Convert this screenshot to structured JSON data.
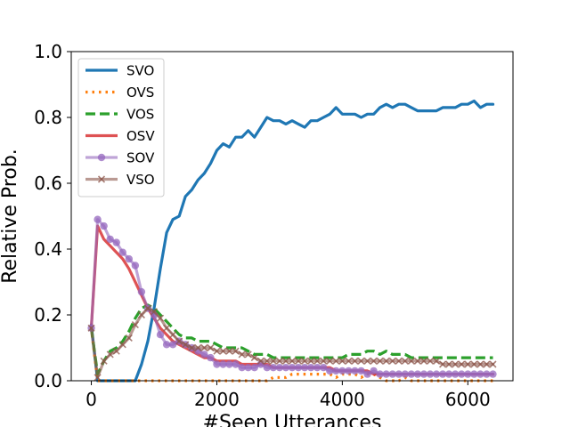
{
  "chart_data": {
    "type": "line",
    "xlabel": "#Seen Utterances",
    "ylabel": "Relative Prob.",
    "xlim": [
      -320,
      6720
    ],
    "ylim": [
      0.0,
      1.0
    ],
    "xticks": [
      0,
      2000,
      4000,
      6000
    ],
    "yticks": [
      0.0,
      0.2,
      0.4,
      0.6,
      0.8,
      1.0
    ],
    "xtick_labels": [
      "0",
      "2000",
      "4000",
      "6000"
    ],
    "ytick_labels": [
      "0.0",
      "0.2",
      "0.4",
      "0.6",
      "0.8",
      "1.0"
    ],
    "grid": false,
    "legend_position": "top-left",
    "x": [
      0,
      100,
      200,
      300,
      400,
      500,
      600,
      700,
      800,
      900,
      1000,
      1100,
      1200,
      1300,
      1400,
      1500,
      1600,
      1700,
      1800,
      1900,
      2000,
      2100,
      2200,
      2300,
      2400,
      2500,
      2600,
      2700,
      2800,
      2900,
      3000,
      3100,
      3200,
      3300,
      3400,
      3500,
      3600,
      3700,
      3800,
      3900,
      4000,
      4100,
      4200,
      4300,
      4400,
      4500,
      4600,
      4700,
      4800,
      4900,
      5000,
      5100,
      5200,
      5300,
      5400,
      5500,
      5600,
      5700,
      5800,
      5900,
      6000,
      6100,
      6200,
      6300,
      6400
    ],
    "series": [
      {
        "name": "SVO",
        "color": "#1f77b4",
        "style": "solid",
        "marker": "none",
        "values": [
          0.17,
          0.0,
          0.0,
          0.0,
          0.0,
          0.0,
          0.0,
          0.0,
          0.05,
          0.12,
          0.22,
          0.34,
          0.45,
          0.49,
          0.5,
          0.56,
          0.58,
          0.61,
          0.63,
          0.66,
          0.7,
          0.72,
          0.71,
          0.74,
          0.74,
          0.76,
          0.74,
          0.77,
          0.8,
          0.79,
          0.79,
          0.78,
          0.79,
          0.78,
          0.77,
          0.79,
          0.79,
          0.8,
          0.81,
          0.83,
          0.81,
          0.81,
          0.81,
          0.8,
          0.81,
          0.81,
          0.83,
          0.84,
          0.83,
          0.84,
          0.84,
          0.83,
          0.82,
          0.82,
          0.82,
          0.82,
          0.83,
          0.83,
          0.83,
          0.84,
          0.84,
          0.85,
          0.83,
          0.84,
          0.84
        ]
      },
      {
        "name": "OVS",
        "color": "#ff7f0e",
        "style": "dotted",
        "marker": "none",
        "values": [
          0.16,
          0.0,
          0.0,
          0.0,
          0.0,
          0.0,
          0.0,
          0.0,
          0.0,
          0.0,
          0.0,
          0.0,
          0.0,
          0.0,
          0.0,
          0.0,
          0.0,
          0.0,
          0.0,
          0.0,
          0.0,
          0.0,
          0.0,
          0.0,
          0.0,
          0.0,
          0.0,
          0.0,
          0.0,
          0.01,
          0.01,
          0.01,
          0.02,
          0.02,
          0.02,
          0.02,
          0.02,
          0.02,
          0.02,
          0.01,
          0.02,
          0.02,
          0.02,
          0.01,
          0.02,
          0.02,
          0.01,
          0.0,
          0.0,
          0.0,
          0.01,
          0.0,
          0.0,
          0.0,
          0.0,
          0.0,
          0.0,
          0.0,
          0.0,
          0.0,
          0.0,
          0.0,
          0.0,
          0.0,
          0.0
        ]
      },
      {
        "name": "VOS",
        "color": "#2ca02c",
        "style": "dashed",
        "marker": "none",
        "values": [
          0.16,
          0.02,
          0.06,
          0.09,
          0.1,
          0.12,
          0.15,
          0.19,
          0.22,
          0.23,
          0.22,
          0.2,
          0.18,
          0.16,
          0.14,
          0.13,
          0.13,
          0.12,
          0.12,
          0.12,
          0.11,
          0.1,
          0.1,
          0.1,
          0.1,
          0.09,
          0.08,
          0.08,
          0.08,
          0.07,
          0.07,
          0.07,
          0.07,
          0.07,
          0.07,
          0.07,
          0.07,
          0.07,
          0.07,
          0.07,
          0.07,
          0.08,
          0.08,
          0.08,
          0.09,
          0.09,
          0.08,
          0.09,
          0.08,
          0.08,
          0.08,
          0.07,
          0.07,
          0.07,
          0.07,
          0.07,
          0.07,
          0.07,
          0.07,
          0.07,
          0.07,
          0.07,
          0.07,
          0.07,
          0.07
        ]
      },
      {
        "name": "OSV",
        "color": "#d62728",
        "style": "solid",
        "marker": "none",
        "values": [
          0.16,
          0.47,
          0.43,
          0.41,
          0.39,
          0.37,
          0.34,
          0.3,
          0.26,
          0.22,
          0.19,
          0.16,
          0.14,
          0.12,
          0.11,
          0.1,
          0.09,
          0.08,
          0.07,
          0.07,
          0.06,
          0.06,
          0.06,
          0.06,
          0.05,
          0.05,
          0.05,
          0.05,
          0.05,
          0.04,
          0.04,
          0.04,
          0.04,
          0.04,
          0.04,
          0.04,
          0.04,
          0.04,
          0.04,
          0.03,
          0.03,
          0.03,
          0.03,
          0.03,
          0.03,
          0.02,
          0.02,
          0.02,
          0.02,
          0.02,
          0.02,
          0.02,
          0.02,
          0.02,
          0.02,
          0.02,
          0.02,
          0.02,
          0.02,
          0.02,
          0.02,
          0.02,
          0.02,
          0.02,
          0.02
        ]
      },
      {
        "name": "SOV",
        "color": "#9467bd",
        "style": "solid",
        "marker": "circle",
        "values": [
          0.16,
          0.49,
          0.47,
          0.43,
          0.42,
          0.39,
          0.37,
          0.35,
          0.27,
          0.22,
          0.2,
          0.14,
          0.11,
          0.11,
          0.12,
          0.11,
          0.1,
          0.09,
          0.08,
          0.07,
          0.05,
          0.05,
          0.05,
          0.05,
          0.04,
          0.04,
          0.04,
          0.05,
          0.04,
          0.04,
          0.04,
          0.04,
          0.04,
          0.04,
          0.04,
          0.04,
          0.04,
          0.04,
          0.03,
          0.03,
          0.03,
          0.03,
          0.03,
          0.03,
          0.02,
          0.03,
          0.02,
          0.02,
          0.02,
          0.02,
          0.02,
          0.02,
          0.02,
          0.02,
          0.02,
          0.02,
          0.02,
          0.02,
          0.02,
          0.02,
          0.02,
          0.02,
          0.02,
          0.02,
          0.02
        ]
      },
      {
        "name": "VSO",
        "color": "#8c564b",
        "style": "solid",
        "marker": "x",
        "values": [
          0.16,
          0.01,
          0.06,
          0.08,
          0.09,
          0.11,
          0.13,
          0.17,
          0.2,
          0.22,
          0.21,
          0.19,
          0.16,
          0.14,
          0.12,
          0.11,
          0.1,
          0.1,
          0.1,
          0.1,
          0.09,
          0.09,
          0.09,
          0.09,
          0.08,
          0.08,
          0.07,
          0.06,
          0.06,
          0.06,
          0.06,
          0.06,
          0.06,
          0.06,
          0.06,
          0.06,
          0.06,
          0.06,
          0.06,
          0.06,
          0.06,
          0.06,
          0.06,
          0.06,
          0.06,
          0.06,
          0.06,
          0.06,
          0.06,
          0.06,
          0.06,
          0.06,
          0.06,
          0.06,
          0.06,
          0.06,
          0.05,
          0.05,
          0.05,
          0.05,
          0.05,
          0.05,
          0.05,
          0.05,
          0.05
        ]
      }
    ]
  }
}
